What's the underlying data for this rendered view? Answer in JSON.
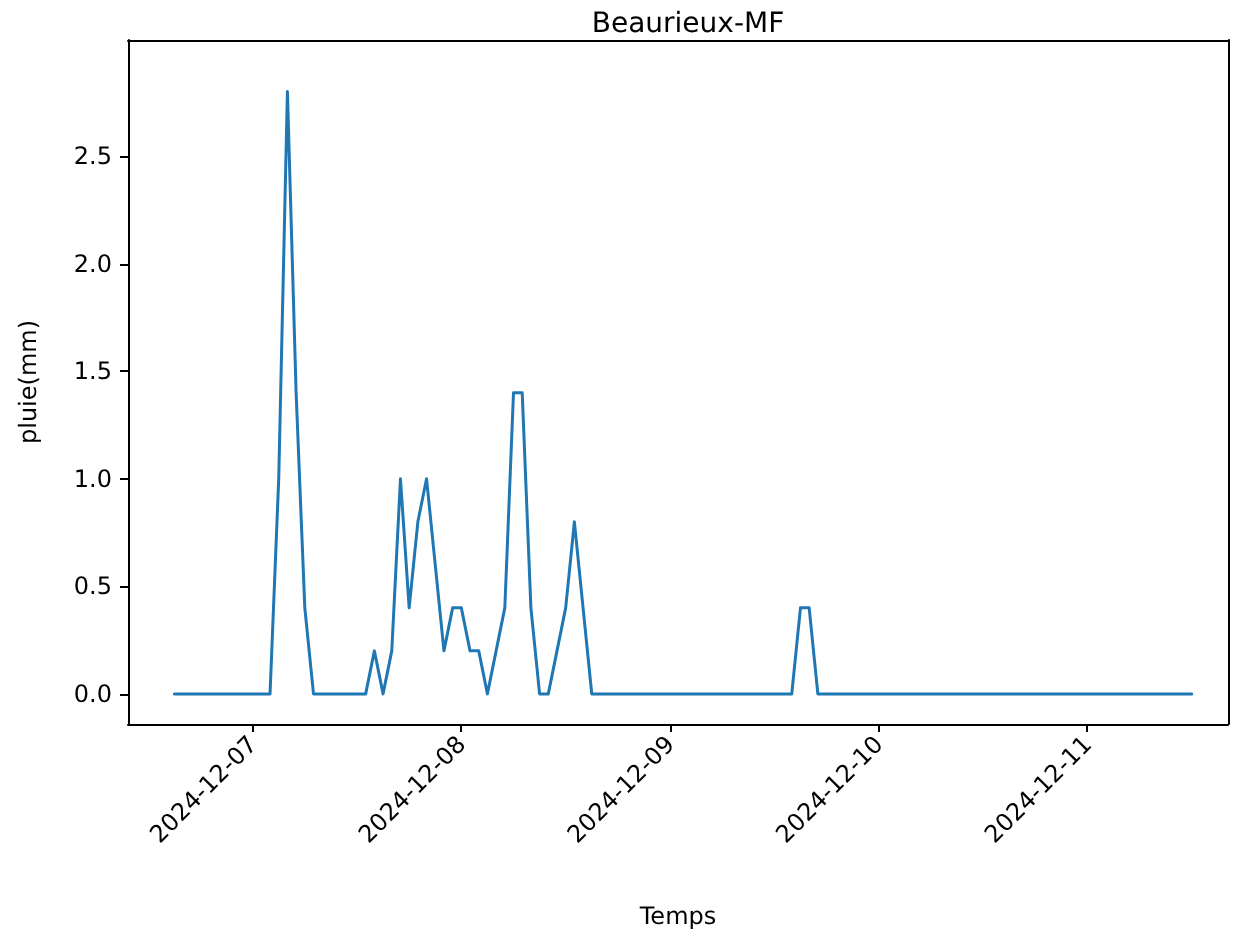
{
  "chart_data": {
    "type": "line",
    "title": "Beaurieux-MF",
    "xlabel": "Temps",
    "ylabel": "pluie(mm)",
    "x": [
      "2024-12-06T15:00",
      "2024-12-07T02:00",
      "2024-12-07T03:00",
      "2024-12-07T04:00",
      "2024-12-07T05:00",
      "2024-12-07T06:00",
      "2024-12-07T07:00",
      "2024-12-07T13:00",
      "2024-12-07T14:00",
      "2024-12-07T15:00",
      "2024-12-07T16:00",
      "2024-12-07T17:00",
      "2024-12-07T18:00",
      "2024-12-07T19:00",
      "2024-12-07T20:00",
      "2024-12-07T22:00",
      "2024-12-07T23:00",
      "2024-12-08T00:00",
      "2024-12-08T01:00",
      "2024-12-08T02:00",
      "2024-12-08T03:00",
      "2024-12-08T05:00",
      "2024-12-08T06:00",
      "2024-12-08T07:00",
      "2024-12-08T08:00",
      "2024-12-08T09:00",
      "2024-12-08T10:00",
      "2024-12-08T11:00",
      "2024-12-08T12:00",
      "2024-12-08T13:00",
      "2024-12-08T14:00",
      "2024-12-08T15:00",
      "2024-12-09T14:00",
      "2024-12-09T15:00",
      "2024-12-09T16:00",
      "2024-12-09T17:00",
      "2024-12-11T12:00"
    ],
    "series": [
      {
        "color": "#1f77b4",
        "values": [
          0,
          0,
          1.0,
          2.8,
          1.4,
          0.4,
          0,
          0,
          0.2,
          0,
          0.2,
          1.0,
          0.4,
          0.8,
          1.0,
          0.2,
          0.4,
          0.4,
          0.2,
          0.2,
          0,
          0.4,
          1.4,
          1.4,
          0.4,
          0,
          0,
          0.2,
          0.4,
          0.8,
          0.4,
          0,
          0,
          0.4,
          0.4,
          0,
          0
        ]
      }
    ],
    "xlim": [
      "2024-12-06T09:40",
      "2024-12-11T16:10"
    ],
    "xticks": [
      "2024-12-07",
      "2024-12-08",
      "2024-12-09",
      "2024-12-10",
      "2024-12-11"
    ],
    "ylim": [
      -0.14,
      3.04
    ],
    "yticks": [
      {
        "value": 0,
        "label": "0.0"
      },
      0.5,
      {
        "value": 1,
        "label": "1.0"
      },
      1.5,
      {
        "value": 2,
        "label": "2.0"
      },
      2.5
    ],
    "grid": false,
    "legend": false,
    "marker": "none",
    "line_style": "solid"
  }
}
